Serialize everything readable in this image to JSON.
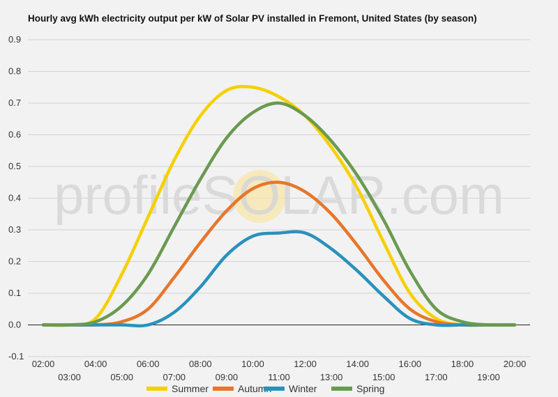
{
  "chart_data": {
    "type": "line",
    "title": "Hourly avg kWh electricity output per kW of Solar PV installed in Fremont, United States (by season)",
    "watermark": "profileSOLAR.com",
    "x": [
      "02:00",
      "03:00",
      "04:00",
      "05:00",
      "06:00",
      "07:00",
      "08:00",
      "09:00",
      "10:00",
      "11:00",
      "12:00",
      "13:00",
      "14:00",
      "15:00",
      "16:00",
      "17:00",
      "18:00",
      "19:00",
      "20:00"
    ],
    "yticks": [
      "0.9",
      "0.8",
      "0.7",
      "0.6",
      "0.5",
      "0.4",
      "0.3",
      "0.2",
      "0.1",
      "0.0",
      "-0.1"
    ],
    "ylim": [
      -0.1,
      0.9
    ],
    "grid": true,
    "legend_position": "bottom",
    "series": [
      {
        "name": "Summer",
        "color": "#f5d000",
        "values": [
          0,
          0,
          0.02,
          0.16,
          0.34,
          0.52,
          0.66,
          0.74,
          0.75,
          0.72,
          0.66,
          0.56,
          0.43,
          0.26,
          0.1,
          0.02,
          0,
          0,
          0
        ]
      },
      {
        "name": "Autumn",
        "color": "#e6772a",
        "values": [
          0,
          0,
          0,
          0.01,
          0.05,
          0.15,
          0.26,
          0.36,
          0.43,
          0.45,
          0.42,
          0.35,
          0.25,
          0.14,
          0.05,
          0.01,
          0,
          0,
          0
        ]
      },
      {
        "name": "Winter",
        "color": "#2a91bd",
        "values": [
          0,
          0,
          0,
          0,
          0,
          0.04,
          0.12,
          0.22,
          0.28,
          0.29,
          0.29,
          0.24,
          0.17,
          0.09,
          0.02,
          0,
          0,
          0,
          0
        ]
      },
      {
        "name": "Spring",
        "color": "#6a9a50",
        "values": [
          0,
          0,
          0.01,
          0.06,
          0.16,
          0.31,
          0.46,
          0.59,
          0.67,
          0.7,
          0.66,
          0.58,
          0.47,
          0.33,
          0.17,
          0.05,
          0.01,
          0,
          0
        ]
      }
    ]
  }
}
